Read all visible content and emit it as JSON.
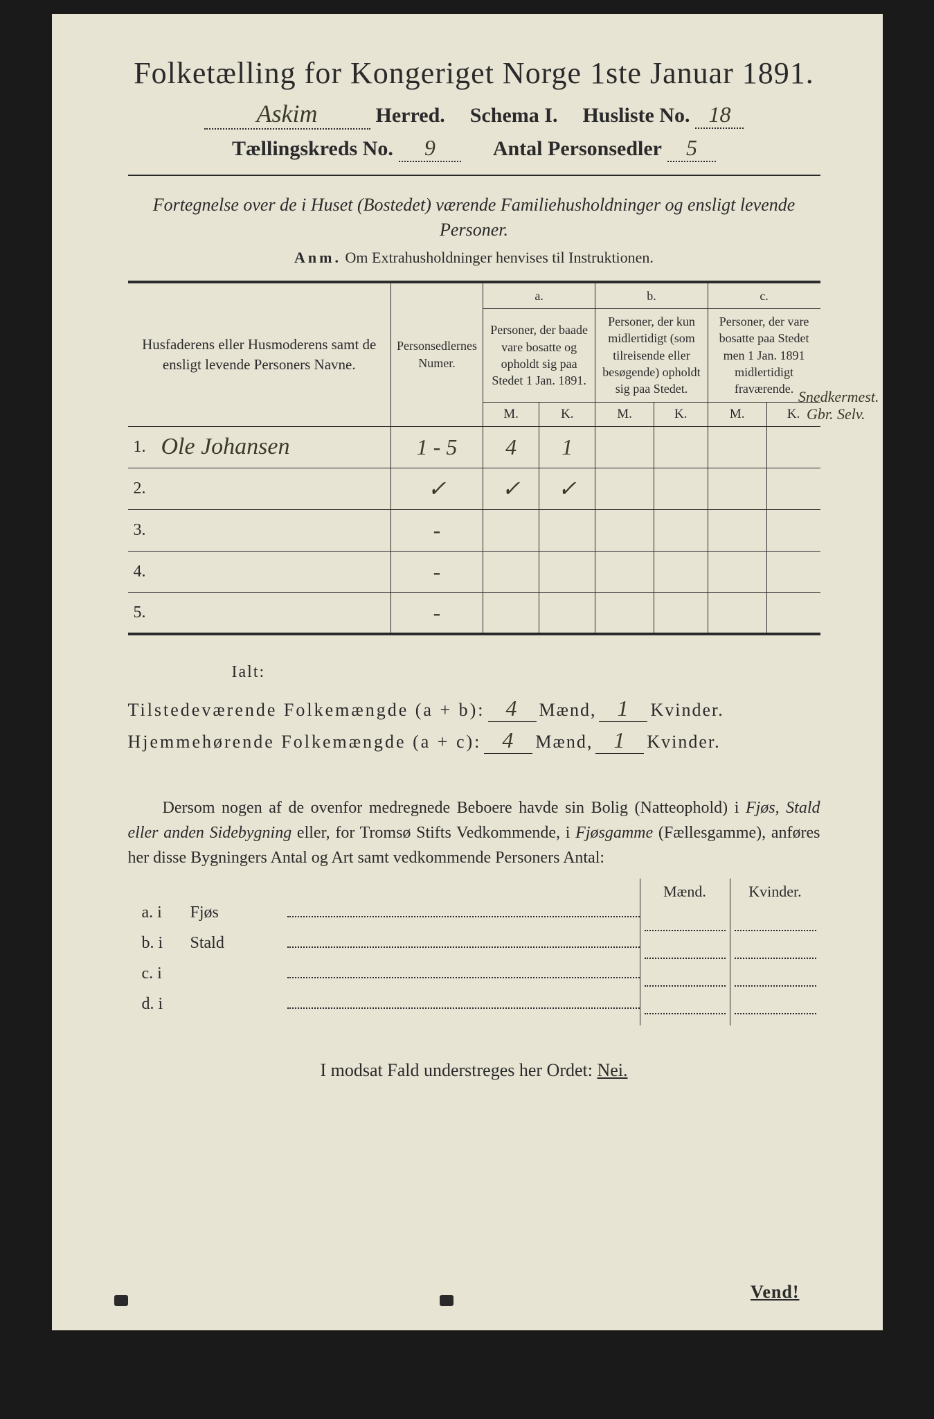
{
  "title": "Folketælling for Kongeriget Norge 1ste Januar 1891.",
  "header": {
    "herred_value": "Askim",
    "herred_label": "Herred.",
    "schema_label": "Schema I.",
    "husliste_label": "Husliste No.",
    "husliste_value": "18",
    "kreds_label": "Tællingskreds No.",
    "kreds_value": "9",
    "antal_label": "Antal Personsedler",
    "antal_value": "5"
  },
  "subtitle": "Fortegnelse over de i Huset (Bostedet) værende Familiehusholdninger og ensligt levende Personer.",
  "anm_label": "Anm.",
  "anm_text": "Om Extrahusholdninger henvises til Instruktionen.",
  "table": {
    "col1": "Husfaderens eller Husmoderens samt de ensligt levende Personers Navne.",
    "col2": "Personsedlernes Numer.",
    "col_a_label": "a.",
    "col_a": "Personer, der baade vare bosatte og opholdt sig paa Stedet 1 Jan. 1891.",
    "col_b_label": "b.",
    "col_b": "Personer, der kun midlertidigt (som tilreisende eller besøgende) opholdt sig paa Stedet.",
    "col_c_label": "c.",
    "col_c": "Personer, der vare bosatte paa Stedet men 1 Jan. 1891 midlertidigt fraværende.",
    "m": "M.",
    "k": "K.",
    "rows": [
      {
        "num": "1.",
        "name": "Ole Johansen",
        "nums": "1 - 5",
        "a_m": "4",
        "a_k": "1",
        "b_m": "",
        "b_k": "",
        "c_m": "",
        "c_k": ""
      },
      {
        "num": "2.",
        "name": "",
        "nums": "✓",
        "a_m": "✓",
        "a_k": "✓",
        "b_m": "",
        "b_k": "",
        "c_m": "",
        "c_k": ""
      },
      {
        "num": "3.",
        "name": "",
        "nums": "-",
        "a_m": "",
        "a_k": "",
        "b_m": "",
        "b_k": "",
        "c_m": "",
        "c_k": ""
      },
      {
        "num": "4.",
        "name": "",
        "nums": "-",
        "a_m": "",
        "a_k": "",
        "b_m": "",
        "b_k": "",
        "c_m": "",
        "c_k": ""
      },
      {
        "num": "5.",
        "name": "",
        "nums": "-",
        "a_m": "",
        "a_k": "",
        "b_m": "",
        "b_k": "",
        "c_m": "",
        "c_k": ""
      }
    ]
  },
  "margin_note1": "Snedkermest.",
  "margin_note2": "Gbr. Selv.",
  "ialt": "Ialt:",
  "summary": {
    "line1_label": "Tilstedeværende Folkemængde (a + b):",
    "line2_label": "Hjemmehørende Folkemængde (a + c):",
    "maend": "Mænd,",
    "kvinder": "Kvinder.",
    "v1_m": "4",
    "v1_k": "1",
    "v2_m": "4",
    "v2_k": "1"
  },
  "paragraph": {
    "p1": "Dersom nogen af de ovenfor medregnede Beboere havde sin Bolig (Natteophold) i ",
    "i1": "Fjøs, Stald eller anden Sidebygning",
    "p2": " eller, for Tromsø Stifts Vedkommende, i ",
    "i2": "Fjøsgamme",
    "p3": " (Fællesgamme), anføres her disse Bygningers Antal og Art samt vedkommende Personers Antal:"
  },
  "subtable": {
    "maend": "Mænd.",
    "kvinder": "Kvinder.",
    "rows": [
      {
        "label": "a. i",
        "name": "Fjøs"
      },
      {
        "label": "b. i",
        "name": "Stald"
      },
      {
        "label": "c. i",
        "name": ""
      },
      {
        "label": "d. i",
        "name": ""
      }
    ]
  },
  "footer": "I modsat Fald understreges her Ordet: ",
  "nei": "Nei.",
  "vend": "Vend!"
}
